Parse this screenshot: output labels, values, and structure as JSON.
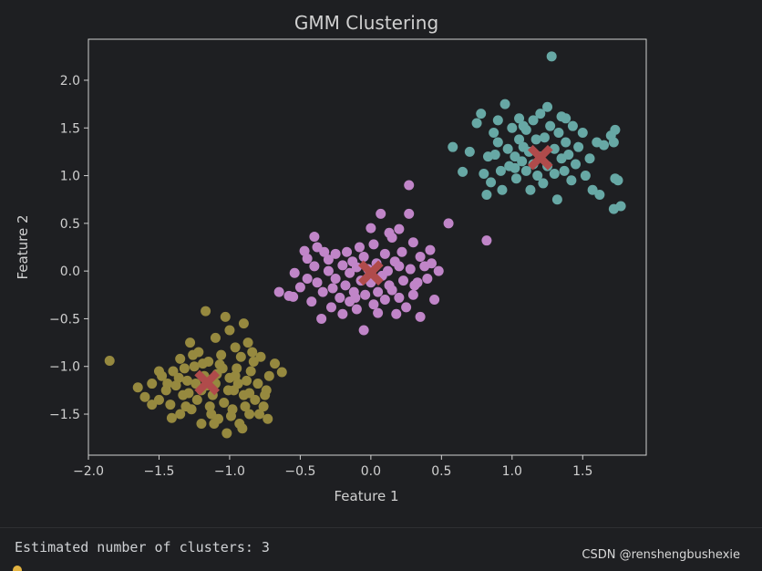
{
  "colors": {
    "background": "#1e1f22",
    "plot_bg": "#1e1f22",
    "axes": "#d0d0d0",
    "cluster_0": "#96893f",
    "cluster_1": "#c085c8",
    "cluster_2": "#67a8a5",
    "centroid": "#b04b4b"
  },
  "chart_data": {
    "type": "scatter",
    "title": "GMM Clustering",
    "xlabel": "Feature 1",
    "ylabel": "Feature 2",
    "xlim": [
      -2.0,
      1.95
    ],
    "ylim": [
      -1.93,
      2.43
    ],
    "xticks": [
      -2.0,
      -1.5,
      -1.0,
      -0.5,
      0.0,
      0.5,
      1.0,
      1.5
    ],
    "xtick_labels": [
      "−2.0",
      "−1.5",
      "−1.0",
      "−0.5",
      "0.0",
      "0.5",
      "1.0",
      "1.5"
    ],
    "yticks": [
      -1.5,
      -1.0,
      -0.5,
      0.0,
      0.5,
      1.0,
      1.5,
      2.0
    ],
    "ytick_labels": [
      "−1.5",
      "−1.0",
      "−0.5",
      "0.0",
      "0.5",
      "1.0",
      "1.5",
      "2.0"
    ],
    "grid": false,
    "series": [
      {
        "color": "#96893f",
        "points": [
          [
            -1.85,
            -0.94
          ],
          [
            -1.65,
            -1.22
          ],
          [
            -1.6,
            -1.32
          ],
          [
            -1.55,
            -1.18
          ],
          [
            -1.5,
            -1.35
          ],
          [
            -1.48,
            -1.1
          ],
          [
            -1.45,
            -1.25
          ],
          [
            -1.42,
            -1.4
          ],
          [
            -1.4,
            -1.05
          ],
          [
            -1.38,
            -1.2
          ],
          [
            -1.35,
            -0.92
          ],
          [
            -1.35,
            -1.5
          ],
          [
            -1.33,
            -1.3
          ],
          [
            -1.3,
            -1.15
          ],
          [
            -1.28,
            -0.75
          ],
          [
            -1.27,
            -1.45
          ],
          [
            -1.25,
            -1.0
          ],
          [
            -1.23,
            -1.35
          ],
          [
            -1.22,
            -0.85
          ],
          [
            -1.2,
            -1.6
          ],
          [
            -1.2,
            -1.25
          ],
          [
            -1.18,
            -1.1
          ],
          [
            -1.17,
            -0.42
          ],
          [
            -1.15,
            -0.95
          ],
          [
            -1.13,
            -1.5
          ],
          [
            -1.12,
            -1.3
          ],
          [
            -1.1,
            -0.7
          ],
          [
            -1.1,
            -1.18
          ],
          [
            -1.08,
            -1.55
          ],
          [
            -1.06,
            -0.88
          ],
          [
            -1.05,
            -1.02
          ],
          [
            -1.04,
            -1.38
          ],
          [
            -1.03,
            -0.48
          ],
          [
            -1.02,
            -1.7
          ],
          [
            -1.0,
            -1.12
          ],
          [
            -1.0,
            -0.62
          ],
          [
            -0.98,
            -1.45
          ],
          [
            -0.97,
            -1.25
          ],
          [
            -0.96,
            -0.8
          ],
          [
            -0.95,
            -1.02
          ],
          [
            -0.93,
            -1.6
          ],
          [
            -0.92,
            -0.9
          ],
          [
            -0.9,
            -1.3
          ],
          [
            -0.9,
            -0.55
          ],
          [
            -0.88,
            -1.15
          ],
          [
            -0.87,
            -0.75
          ],
          [
            -0.86,
            -1.5
          ],
          [
            -0.85,
            -1.05
          ],
          [
            -0.83,
            -0.95
          ],
          [
            -0.82,
            -1.35
          ],
          [
            -0.8,
            -1.18
          ],
          [
            -0.78,
            -0.9
          ],
          [
            -0.76,
            -1.42
          ],
          [
            -0.74,
            -1.25
          ],
          [
            -0.73,
            -1.55
          ],
          [
            -0.72,
            -1.1
          ],
          [
            -0.68,
            -0.97
          ],
          [
            -0.63,
            -1.06
          ],
          [
            -1.55,
            -1.4
          ],
          [
            -1.5,
            -1.05
          ],
          [
            -1.44,
            -1.18
          ],
          [
            -1.41,
            -1.54
          ],
          [
            -1.32,
            -1.02
          ],
          [
            -1.29,
            -1.28
          ],
          [
            -1.26,
            -0.88
          ],
          [
            -1.14,
            -1.42
          ],
          [
            -1.09,
            -1.08
          ],
          [
            -1.07,
            -0.98
          ],
          [
            -0.99,
            -1.52
          ],
          [
            -0.94,
            -1.18
          ],
          [
            -0.89,
            -1.42
          ],
          [
            -0.84,
            -0.85
          ],
          [
            -0.79,
            -1.5
          ],
          [
            -0.75,
            -1.3
          ],
          [
            -1.36,
            -1.12
          ],
          [
            -1.31,
            -1.42
          ],
          [
            -1.24,
            -1.18
          ],
          [
            -1.19,
            -0.97
          ],
          [
            -1.16,
            -1.2
          ],
          [
            -1.11,
            -1.6
          ],
          [
            -1.01,
            -1.25
          ],
          [
            -0.96,
            -1.1
          ],
          [
            -0.91,
            -1.65
          ],
          [
            -0.86,
            -1.28
          ]
        ]
      },
      {
        "color": "#c085c8",
        "points": [
          [
            -0.65,
            -0.22
          ],
          [
            -0.55,
            -0.27
          ],
          [
            -0.54,
            -0.02
          ],
          [
            -0.5,
            -0.17
          ],
          [
            -0.45,
            -0.08
          ],
          [
            -0.45,
            0.13
          ],
          [
            -0.42,
            -0.32
          ],
          [
            -0.4,
            0.05
          ],
          [
            -0.4,
            0.36
          ],
          [
            -0.38,
            -0.12
          ],
          [
            -0.38,
            0.25
          ],
          [
            -0.35,
            -0.5
          ],
          [
            -0.34,
            -0.22
          ],
          [
            -0.3,
            0.0
          ],
          [
            -0.3,
            0.12
          ],
          [
            -0.28,
            -0.38
          ],
          [
            -0.27,
            -0.18
          ],
          [
            -0.25,
            0.18
          ],
          [
            -0.25,
            -0.08
          ],
          [
            -0.22,
            -0.28
          ],
          [
            -0.2,
            0.06
          ],
          [
            -0.2,
            -0.45
          ],
          [
            -0.18,
            -0.15
          ],
          [
            -0.17,
            0.2
          ],
          [
            -0.15,
            -0.02
          ],
          [
            -0.15,
            -0.32
          ],
          [
            -0.13,
            0.1
          ],
          [
            -0.12,
            -0.22
          ],
          [
            -0.1,
            0.04
          ],
          [
            -0.1,
            -0.4
          ],
          [
            -0.08,
            0.25
          ],
          [
            -0.07,
            -0.1
          ],
          [
            -0.05,
            -0.62
          ],
          [
            -0.05,
            0.15
          ],
          [
            -0.04,
            -0.25
          ],
          [
            -0.02,
            0.02
          ],
          [
            0.0,
            0.45
          ],
          [
            0.0,
            -0.12
          ],
          [
            0.02,
            -0.35
          ],
          [
            0.02,
            0.28
          ],
          [
            0.04,
            0.08
          ],
          [
            0.05,
            -0.22
          ],
          [
            0.07,
            0.6
          ],
          [
            0.08,
            -0.05
          ],
          [
            0.1,
            0.18
          ],
          [
            0.1,
            -0.3
          ],
          [
            0.12,
            0.0
          ],
          [
            0.13,
            -0.15
          ],
          [
            0.15,
            0.35
          ],
          [
            0.15,
            -0.2
          ],
          [
            0.17,
            0.1
          ],
          [
            0.18,
            -0.45
          ],
          [
            0.2,
            0.05
          ],
          [
            0.2,
            -0.28
          ],
          [
            0.22,
            0.2
          ],
          [
            0.23,
            -0.1
          ],
          [
            0.25,
            -0.38
          ],
          [
            0.27,
            0.6
          ],
          [
            0.28,
            0.02
          ],
          [
            0.3,
            -0.25
          ],
          [
            0.3,
            0.3
          ],
          [
            0.33,
            -0.12
          ],
          [
            0.35,
            0.15
          ],
          [
            0.35,
            -0.48
          ],
          [
            0.38,
            0.05
          ],
          [
            0.4,
            -0.08
          ],
          [
            0.42,
            0.22
          ],
          [
            0.45,
            -0.3
          ],
          [
            0.48,
            0.0
          ],
          [
            0.55,
            0.5
          ],
          [
            0.82,
            0.32
          ],
          [
            0.27,
            0.9
          ],
          [
            0.13,
            0.4
          ],
          [
            0.2,
            0.44
          ],
          [
            -0.58,
            -0.26
          ],
          [
            -0.47,
            0.21
          ],
          [
            -0.33,
            0.2
          ],
          [
            -0.11,
            -0.28
          ],
          [
            0.05,
            -0.44
          ],
          [
            0.31,
            -0.15
          ],
          [
            0.43,
            0.08
          ]
        ]
      },
      {
        "color": "#67a8a5",
        "points": [
          [
            0.58,
            1.3
          ],
          [
            0.65,
            1.04
          ],
          [
            0.7,
            1.25
          ],
          [
            0.75,
            1.55
          ],
          [
            0.78,
            1.65
          ],
          [
            0.8,
            1.02
          ],
          [
            0.82,
            0.8
          ],
          [
            0.83,
            1.2
          ],
          [
            0.85,
            0.93
          ],
          [
            0.87,
            1.45
          ],
          [
            0.9,
            1.35
          ],
          [
            0.92,
            1.05
          ],
          [
            0.93,
            0.85
          ],
          [
            0.95,
            1.75
          ],
          [
            0.97,
            1.28
          ],
          [
            0.98,
            1.1
          ],
          [
            1.0,
            1.5
          ],
          [
            1.02,
            1.2
          ],
          [
            1.03,
            0.97
          ],
          [
            1.05,
            1.38
          ],
          [
            1.05,
            1.6
          ],
          [
            1.07,
            1.15
          ],
          [
            1.08,
            1.3
          ],
          [
            1.1,
            1.05
          ],
          [
            1.1,
            1.48
          ],
          [
            1.12,
            1.25
          ],
          [
            1.13,
            0.85
          ],
          [
            1.15,
            1.58
          ],
          [
            1.15,
            1.12
          ],
          [
            1.17,
            1.38
          ],
          [
            1.18,
            1.0
          ],
          [
            1.2,
            1.65
          ],
          [
            1.2,
            1.2
          ],
          [
            1.22,
            0.92
          ],
          [
            1.23,
            1.4
          ],
          [
            1.25,
            1.1
          ],
          [
            1.27,
            1.52
          ],
          [
            1.28,
            2.25
          ],
          [
            1.3,
            1.28
          ],
          [
            1.3,
            1.02
          ],
          [
            1.32,
            0.75
          ],
          [
            1.33,
            1.45
          ],
          [
            1.35,
            1.18
          ],
          [
            1.35,
            1.62
          ],
          [
            1.37,
            1.05
          ],
          [
            1.38,
            1.35
          ],
          [
            1.4,
            1.22
          ],
          [
            1.42,
            0.95
          ],
          [
            1.43,
            1.52
          ],
          [
            1.45,
            1.12
          ],
          [
            1.47,
            1.3
          ],
          [
            1.5,
            1.45
          ],
          [
            1.52,
            1.0
          ],
          [
            1.55,
            1.18
          ],
          [
            1.57,
            0.85
          ],
          [
            1.6,
            1.35
          ],
          [
            1.62,
            0.8
          ],
          [
            1.65,
            1.32
          ],
          [
            1.7,
            1.42
          ],
          [
            1.72,
            1.35
          ],
          [
            1.73,
            0.97
          ],
          [
            1.73,
            1.48
          ],
          [
            1.75,
            0.95
          ],
          [
            1.77,
            0.68
          ],
          [
            1.72,
            0.65
          ],
          [
            1.25,
            1.72
          ],
          [
            0.9,
            1.58
          ],
          [
            1.08,
            1.52
          ],
          [
            1.38,
            1.6
          ],
          [
            1.02,
            1.08
          ],
          [
            0.88,
            1.22
          ]
        ]
      }
    ],
    "centroids": [
      [
        -1.16,
        -1.17
      ],
      [
        0.0,
        -0.02
      ],
      [
        1.2,
        1.19
      ]
    ]
  },
  "console": {
    "output_line": "Estimated number of clusters: 3"
  },
  "watermark": "CSDN @renshengbushexie"
}
